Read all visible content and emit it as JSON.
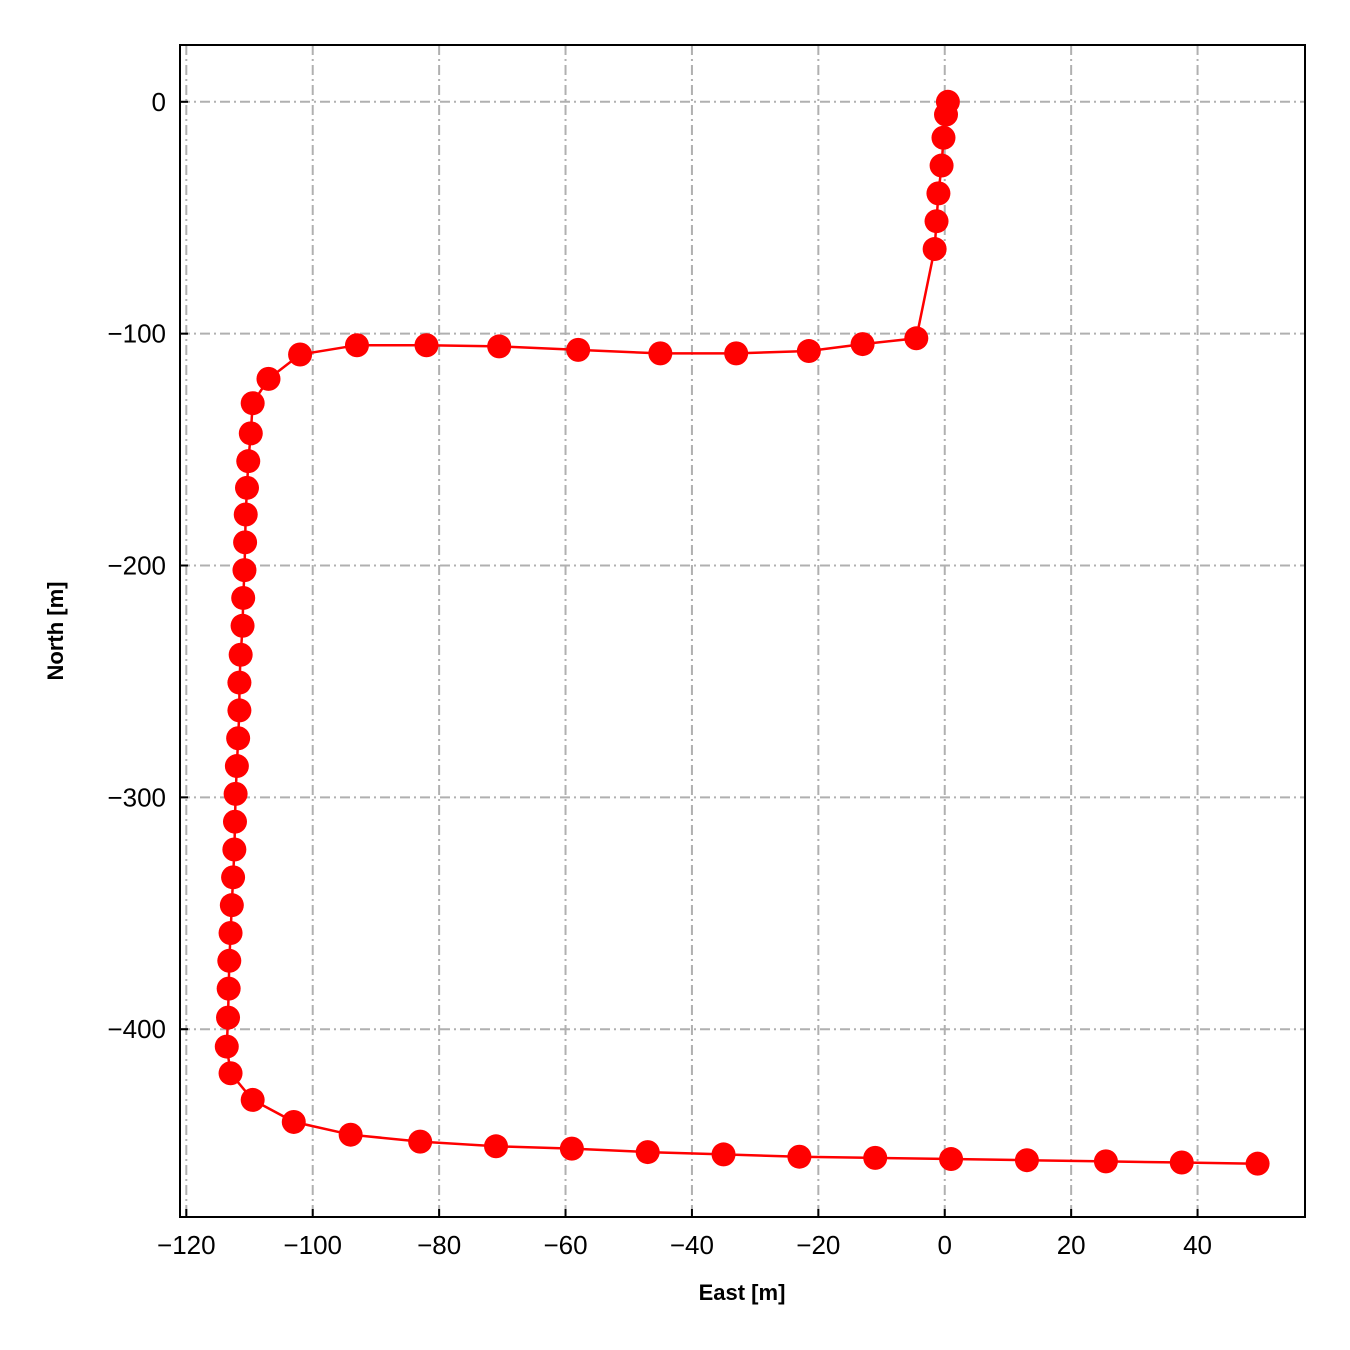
{
  "chart_data": {
    "type": "line",
    "title": "",
    "xlabel": "East [m]",
    "ylabel": "North [m]",
    "xlim": [
      -121,
      57
    ],
    "ylim": [
      -481,
      24.5
    ],
    "xticks": [
      -120,
      -100,
      -80,
      -60,
      -40,
      -20,
      0,
      20,
      40
    ],
    "yticks": [
      0,
      -100,
      -200,
      -300,
      -400
    ],
    "xtick_labels": [
      "−120",
      "−100",
      "−80",
      "−60",
      "−40",
      "−20",
      "0",
      "20",
      "40"
    ],
    "ytick_labels": [
      "0",
      "−100",
      "−200",
      "−300",
      "−400"
    ],
    "grid": true,
    "grid_style": "dash-dot",
    "colors": {
      "line": "#ff0000",
      "marker": "#ff0000",
      "grid": "#b0b0b0"
    },
    "series": [
      {
        "marker": "circle",
        "points": [
          [
            0.5,
            0.0
          ],
          [
            0.2,
            -5.5
          ],
          [
            -0.2,
            -15.5
          ],
          [
            -0.5,
            -27.5
          ],
          [
            -1.0,
            -39.5
          ],
          [
            -1.3,
            -51.5
          ],
          [
            -1.6,
            -63.5
          ],
          [
            -4.5,
            -102.0
          ],
          [
            -13.0,
            -104.5
          ],
          [
            -21.5,
            -107.5
          ],
          [
            -33.0,
            -108.5
          ],
          [
            -45.0,
            -108.5
          ],
          [
            -58.0,
            -107.0
          ],
          [
            -70.5,
            -105.5
          ],
          [
            -82.0,
            -105.0
          ],
          [
            -93.0,
            -105.0
          ],
          [
            -102.0,
            -109.0
          ],
          [
            -107.0,
            -119.5
          ],
          [
            -109.5,
            -130.0
          ],
          [
            -109.8,
            -143.0
          ],
          [
            -110.2,
            -155.0
          ],
          [
            -110.4,
            -166.5
          ],
          [
            -110.6,
            -178.0
          ],
          [
            -110.7,
            -190.0
          ],
          [
            -110.8,
            -202.0
          ],
          [
            -111.0,
            -214.0
          ],
          [
            -111.1,
            -226.0
          ],
          [
            -111.4,
            -238.5
          ],
          [
            -111.6,
            -250.5
          ],
          [
            -111.6,
            -262.5
          ],
          [
            -111.8,
            -274.5
          ],
          [
            -112.0,
            -286.5
          ],
          [
            -112.2,
            -298.5
          ],
          [
            -112.3,
            -310.5
          ],
          [
            -112.4,
            -322.5
          ],
          [
            -112.6,
            -334.5
          ],
          [
            -112.8,
            -346.5
          ],
          [
            -113.0,
            -358.5
          ],
          [
            -113.2,
            -370.5
          ],
          [
            -113.3,
            -382.5
          ],
          [
            -113.4,
            -395.0
          ],
          [
            -113.6,
            -407.5
          ],
          [
            -113.0,
            -419.0
          ],
          [
            -109.5,
            -430.5
          ],
          [
            -103.0,
            -440.0
          ],
          [
            -94.0,
            -445.5
          ],
          [
            -83.0,
            -448.5
          ],
          [
            -71.0,
            -450.5
          ],
          [
            -59.0,
            -451.5
          ],
          [
            -47.0,
            -453.0
          ],
          [
            -35.0,
            -454.0
          ],
          [
            -23.0,
            -455.0
          ],
          [
            -11.0,
            -455.5
          ],
          [
            1.0,
            -456.0
          ],
          [
            13.0,
            -456.5
          ],
          [
            25.5,
            -457.0
          ],
          [
            37.5,
            -457.5
          ],
          [
            49.5,
            -458.0
          ]
        ]
      }
    ]
  }
}
